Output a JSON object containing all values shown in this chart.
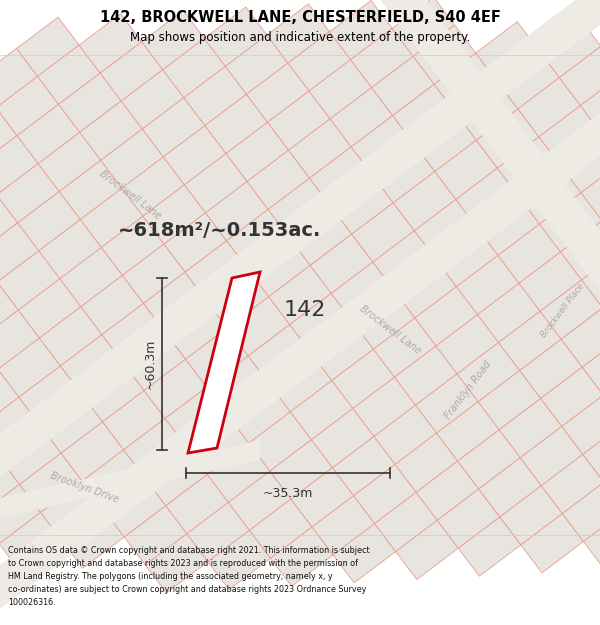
{
  "title": "142, BROCKWELL LANE, CHESTERFIELD, S40 4EF",
  "subtitle": "Map shows position and indicative extent of the property.",
  "area_text": "~618m²/~0.153ac.",
  "dim_width": "~35.3m",
  "dim_height": "~60.3m",
  "property_label": "142",
  "footer_lines": [
    "Contains OS data © Crown copyright and database right 2021. This information is subject",
    "to Crown copyright and database rights 2023 and is reproduced with the permission of",
    "HM Land Registry. The polygons (including the associated geometry, namely x, y",
    "co-ordinates) are subject to Crown copyright and database rights 2023 Ordnance Survey",
    "100026316."
  ],
  "map_bg": "#f7f5f2",
  "parcel_fc": "#e8e4df",
  "parcel_ec": "#e8a090",
  "road_fc": "#f0ece6",
  "prop_ec": "#cc0011",
  "prop_fc": "#ffffff",
  "dim_color": "#333333",
  "label_color": "#333333",
  "road_label_color": "#aaaaaa",
  "title_color": "#000000",
  "footer_color": "#111111",
  "title_fontsize": 10.5,
  "subtitle_fontsize": 8.5,
  "area_fontsize": 14,
  "prop_label_fontsize": 16,
  "road_label_fontsize": 7,
  "footer_fontsize": 5.8,
  "dim_fontsize": 9
}
